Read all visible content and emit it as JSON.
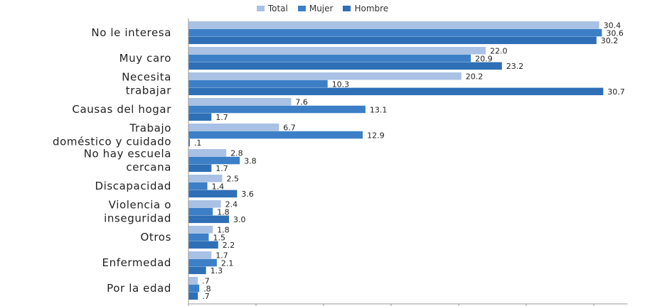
{
  "chart_data": {
    "type": "bar",
    "orientation": "horizontal",
    "categories": [
      [
        "No le interesa"
      ],
      [
        "Muy caro"
      ],
      [
        "Necesita",
        "trabajar"
      ],
      [
        "Causas del hogar"
      ],
      [
        "Trabajo",
        "doméstico y cuidado"
      ],
      [
        "No hay escuela",
        "cercana"
      ],
      [
        "Discapacidad"
      ],
      [
        "Violencia o",
        "inseguridad"
      ],
      [
        "Otros"
      ],
      [
        "Enfermedad"
      ],
      [
        "Por la edad"
      ]
    ],
    "series": [
      {
        "name": "Total",
        "color": "#a9c1e4",
        "values": [
          30.4,
          22.0,
          20.2,
          7.6,
          6.7,
          2.8,
          2.5,
          2.4,
          1.8,
          1.7,
          0.7
        ],
        "labels": [
          "30.4",
          "22.0",
          "20.2",
          "7.6",
          "6.7",
          "2.8",
          "2.5",
          "2.4",
          "1.8",
          "1.7",
          ".7"
        ]
      },
      {
        "name": "Mujer",
        "color": "#3d7fc6",
        "values": [
          30.6,
          20.9,
          10.3,
          13.1,
          12.9,
          3.8,
          1.4,
          1.8,
          1.5,
          2.1,
          0.8
        ],
        "labels": [
          "30.6",
          "20.9",
          "10.3",
          "13.1",
          "12.9",
          "3.8",
          "1.4",
          "1.8",
          "1.5",
          "2.1",
          ".8"
        ]
      },
      {
        "name": "Hombre",
        "color": "#2e6fb6",
        "values": [
          30.2,
          23.2,
          30.7,
          1.7,
          0.1,
          1.7,
          3.6,
          3.0,
          2.2,
          1.3,
          0.7
        ],
        "labels": [
          "30.2",
          "23.2",
          "30.7",
          "1.7",
          ".1",
          "1.7",
          "3.6",
          "3.0",
          "2.2",
          "1.3",
          ".7"
        ]
      }
    ],
    "xlim": [
      0,
      32.5
    ],
    "xticks": [
      "0",
      "5.0",
      "10.0",
      "15.0",
      "20.0",
      "25.0",
      "30.0"
    ],
    "grid": false,
    "legend_position": "top"
  }
}
